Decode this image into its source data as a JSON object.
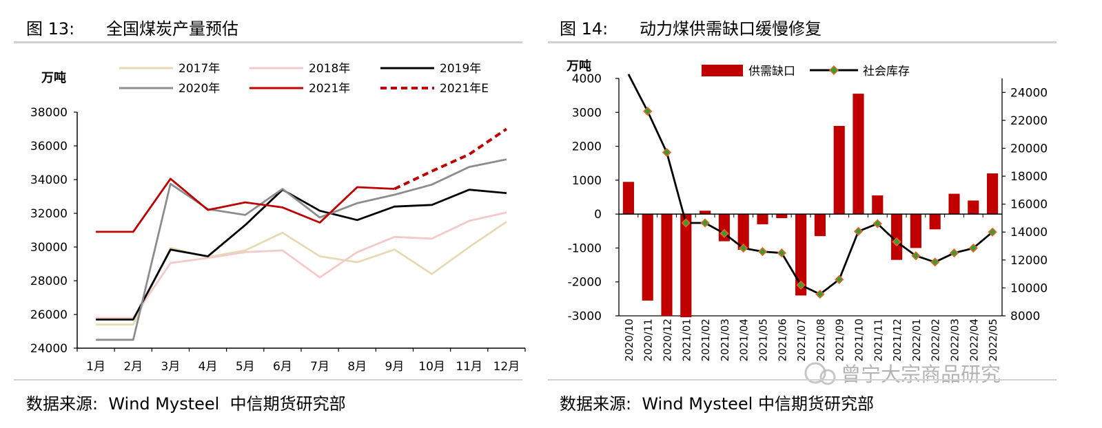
{
  "left": {
    "title": "图 13:      全国煤炭产量预估",
    "source": "数据来源:  Wind Mysteel  中信期货研究部",
    "chart_data": {
      "type": "line",
      "title": "全国煤炭产量预估",
      "ylabel": "万吨",
      "ylim": [
        24000,
        38000
      ],
      "yticks": [
        24000,
        26000,
        28000,
        30000,
        32000,
        34000,
        36000,
        38000
      ],
      "categories": [
        "1月",
        "2月",
        "3月",
        "4月",
        "5月",
        "6月",
        "7月",
        "8月",
        "9月",
        "10月",
        "11月",
        "12月"
      ],
      "legend_position": "top",
      "series": [
        {
          "name": "2017年",
          "color": "#e8d9b5",
          "style": "solid",
          "values": [
            25400,
            25400,
            29950,
            29400,
            29800,
            30850,
            29450,
            29100,
            29850,
            28400,
            30000,
            31500
          ]
        },
        {
          "name": "2018年",
          "color": "#f4c9c9",
          "style": "solid",
          "values": [
            25800,
            25800,
            29050,
            29350,
            29700,
            29800,
            28200,
            29700,
            30600,
            30500,
            31550,
            32050
          ]
        },
        {
          "name": "2019年",
          "color": "#000000",
          "style": "solid",
          "values": [
            25700,
            25700,
            29850,
            29450,
            31300,
            33400,
            32150,
            31600,
            32400,
            32500,
            33400,
            33200
          ]
        },
        {
          "name": "2020年",
          "color": "#8c8c8c",
          "style": "solid",
          "values": [
            24500,
            24500,
            33750,
            32250,
            31900,
            33450,
            31750,
            32600,
            33100,
            33700,
            34750,
            35200
          ]
        },
        {
          "name": "2021年",
          "color": "#c00000",
          "style": "solid",
          "values": [
            30900,
            30900,
            34050,
            32200,
            32650,
            32350,
            31450,
            33550,
            33450,
            null,
            null,
            null
          ]
        },
        {
          "name": "2021年E",
          "color": "#c00000",
          "style": "dashed",
          "values": [
            null,
            null,
            null,
            null,
            null,
            null,
            null,
            null,
            33450,
            34500,
            35500,
            37000
          ]
        }
      ]
    }
  },
  "right": {
    "title": "图 14:      动力煤供需缺口缓慢修复",
    "source": "数据来源:  Wind Mysteel 中信期货研究部",
    "watermark": "曾宁大宗商品研究",
    "chart_data": {
      "type": "bar",
      "title": "动力煤供需缺口缓慢修复",
      "ylabel": "万吨",
      "ylim": [
        -3000,
        4000
      ],
      "yticks": [
        -3000,
        -2000,
        -1000,
        0,
        1000,
        2000,
        3000,
        4000
      ],
      "y2lim": [
        8000,
        25000
      ],
      "y2ticks": [
        8000,
        10000,
        12000,
        14000,
        16000,
        18000,
        20000,
        22000,
        24000
      ],
      "legend_position": "top",
      "categories": [
        "2020/10",
        "2020/11",
        "2020/12",
        "2021/01",
        "2021/02",
        "2021/03",
        "2021/04",
        "2021/05",
        "2021/06",
        "2021/07",
        "2021/08",
        "2021/09",
        "2021/10",
        "2021/11",
        "2021/12",
        "2022/01",
        "2022/02",
        "2022/03",
        "2022/04",
        "2022/05"
      ],
      "series": [
        {
          "name": "供需缺口",
          "type": "bar",
          "axis": "left",
          "color": "#c00000",
          "values": [
            950,
            -2550,
            -3000,
            -3050,
            100,
            -800,
            -1050,
            -300,
            -120,
            -2400,
            -650,
            2600,
            3550,
            550,
            -1350,
            -1000,
            -450,
            600,
            400,
            1200
          ]
        },
        {
          "name": "社会库存",
          "type": "line",
          "axis": "right",
          "color": "#000000",
          "marker_fill": "#3a9a3a",
          "marker_edge": "#e06a1e",
          "values": [
            25300,
            22650,
            19700,
            14650,
            14650,
            13900,
            12850,
            12600,
            12500,
            10200,
            9550,
            10600,
            14050,
            14600,
            13300,
            12300,
            11850,
            12500,
            12850,
            14000
          ]
        }
      ]
    }
  }
}
